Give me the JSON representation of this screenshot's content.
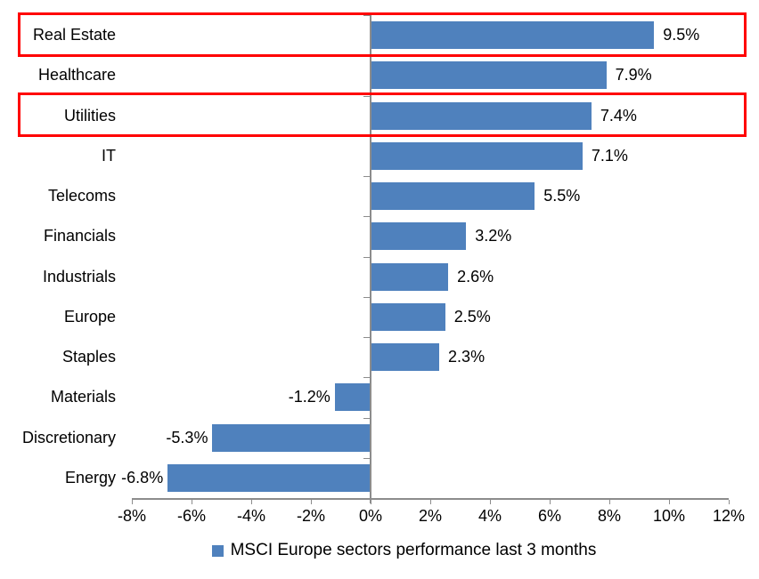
{
  "chart_data": {
    "type": "bar",
    "orientation": "horizontal",
    "title": "",
    "categories": [
      "Real Estate",
      "Healthcare",
      "Utilities",
      "IT",
      "Telecoms",
      "Financials",
      "Industrials",
      "Europe",
      "Staples",
      "Materials",
      "Discretionary",
      "Energy"
    ],
    "values": [
      9.5,
      7.9,
      7.4,
      7.1,
      5.5,
      3.2,
      2.6,
      2.5,
      2.3,
      -1.2,
      -5.3,
      -6.8
    ],
    "data_labels": [
      "9.5%",
      "7.9%",
      "7.4%",
      "7.1%",
      "5.5%",
      "3.2%",
      "2.6%",
      "2.5%",
      "2.3%",
      "-1.2%",
      "-5.3%",
      "-6.8%"
    ],
    "x_tick_labels": [
      "-8%",
      "-6%",
      "-4%",
      "-2%",
      "0%",
      "2%",
      "4%",
      "6%",
      "8%",
      "10%",
      "12%"
    ],
    "xlim": [
      -8,
      12
    ],
    "x_tick_step": 2,
    "grid": "off",
    "legend": "MSCI Europe sectors performance last 3 months",
    "legend_position": "bottom",
    "bar_color": "#4F81BD",
    "axis_color": "#8C8C8C",
    "highlight_color": "#FF0000",
    "highlighted_categories": [
      "Real Estate",
      "Utilities"
    ]
  }
}
